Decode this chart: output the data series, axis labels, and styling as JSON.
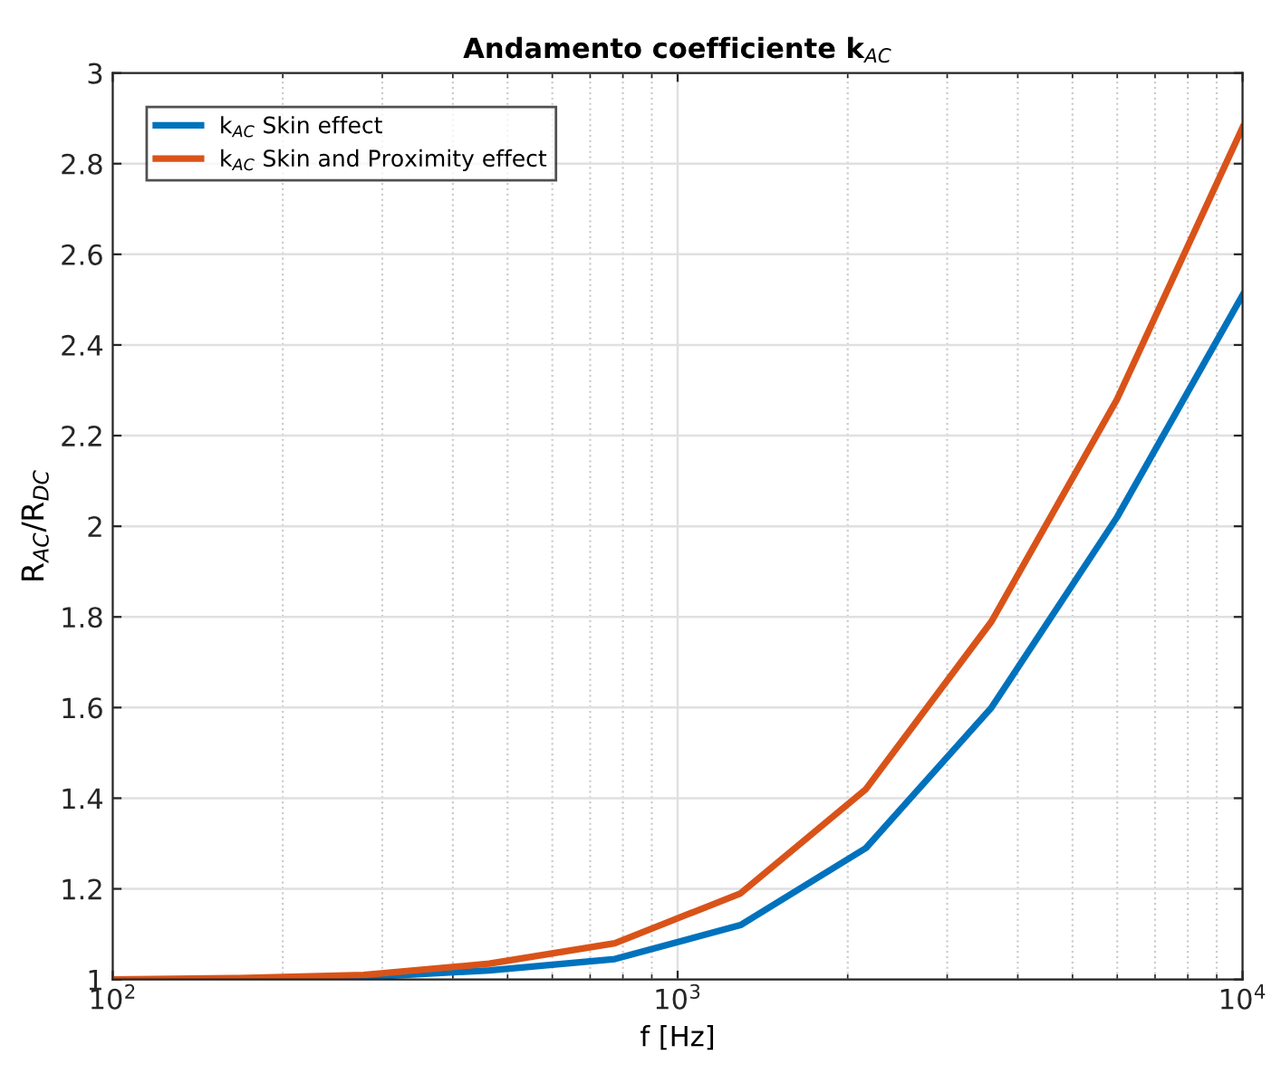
{
  "chart_data": {
    "type": "line",
    "title": "Andamento coefficiente k$_{AC}$",
    "xlabel": "f [Hz]",
    "ylabel": "R$_{AC}$/R$_{DC}$",
    "log": "x",
    "x": [
      100,
      167,
      278,
      464,
      774,
      1292,
      2154,
      3594,
      5995,
      10000
    ],
    "series": [
      {
        "name": "k$_{AC}$ Skin effect",
        "color": "#0072bd",
        "values": [
          1.0,
          1.0,
          1.005,
          1.02,
          1.045,
          1.12,
          1.29,
          1.6,
          2.02,
          2.51
        ]
      },
      {
        "name": "k$_{AC}$ Skin and Proximity effect",
        "color": "#d95319",
        "values": [
          1.0,
          1.003,
          1.01,
          1.035,
          1.08,
          1.19,
          1.42,
          1.79,
          2.28,
          2.88
        ]
      }
    ],
    "xlim": [
      100,
      10000
    ],
    "xticks": [
      {
        "value": 100,
        "label": "10$^{2}$"
      },
      {
        "value": 1000,
        "label": "10$^{3}$"
      },
      {
        "value": 10000,
        "label": "10$^{4}$"
      }
    ],
    "ylim": [
      1,
      3
    ],
    "yticks": [
      1,
      1.2,
      1.4,
      1.6,
      1.8,
      2,
      2.2,
      2.4,
      2.6,
      2.8,
      3
    ],
    "grid": true,
    "legend": "top left",
    "marker": "none",
    "line_style": "solid"
  }
}
